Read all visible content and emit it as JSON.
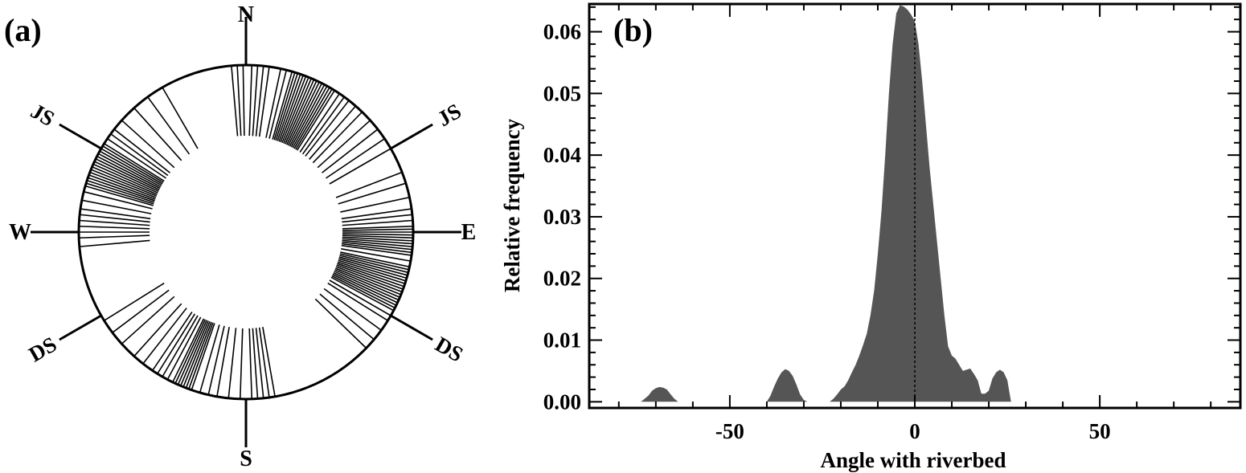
{
  "panels": {
    "a_label": "(a)",
    "b_label": "(b)"
  },
  "rose": {
    "directions": {
      "n": "N",
      "e": "E",
      "s": "S",
      "w": "W"
    },
    "markers": [
      {
        "text": "JS",
        "azimuth_deg": 60
      },
      {
        "text": "JS",
        "azimuth_deg": 300
      },
      {
        "text": "DS",
        "azimuth_deg": 120
      },
      {
        "text": "DS",
        "azimuth_deg": 240
      }
    ],
    "line_azimuths_deg": [
      355,
      357,
      359,
      2,
      4,
      6,
      8,
      12,
      14,
      16,
      17,
      18,
      19,
      20,
      21,
      22,
      23,
      24,
      25,
      26,
      27,
      28,
      29,
      30,
      31,
      32,
      34,
      36,
      38,
      41,
      44,
      48,
      52,
      56,
      60,
      69,
      73,
      78,
      82,
      84,
      86,
      88,
      89,
      90,
      91,
      92,
      93,
      94,
      95,
      96,
      97,
      98,
      100,
      102,
      103,
      104,
      105,
      106,
      107,
      108,
      109,
      110,
      111,
      112,
      113,
      114,
      115,
      116,
      117,
      118,
      120,
      122,
      126,
      130,
      134,
      170,
      172,
      174,
      176,
      178,
      182,
      186,
      190,
      193,
      196,
      199,
      200,
      201,
      202,
      203,
      204,
      205,
      206,
      208,
      210,
      212,
      214,
      218,
      222,
      228,
      233,
      238,
      265,
      268,
      270,
      272,
      274,
      276,
      278,
      281,
      284,
      286,
      287,
      288,
      289,
      290,
      291,
      292,
      293,
      294,
      295,
      296,
      297,
      298,
      299,
      300,
      301,
      302,
      304,
      306,
      308,
      312,
      318,
      324,
      330
    ]
  },
  "chart_data": {
    "type": "area",
    "xlabel": "Angle with riverbed",
    "ylabel": "Relative frequency",
    "xlim": [
      -88,
      88
    ],
    "ylim": [
      -0.001,
      0.0645
    ],
    "xticks": [
      -50,
      0,
      50
    ],
    "yticks": [
      0.0,
      0.01,
      0.02,
      0.03,
      0.04,
      0.05,
      0.06
    ],
    "ytick_labels": [
      "0.00",
      "0.01",
      "0.02",
      "0.03",
      "0.04",
      "0.05",
      "0.06"
    ],
    "reference_line_x": 0,
    "grid": false,
    "fill_color": "#555555",
    "series": [
      {
        "x": [
          -74,
          -72,
          -71,
          -70,
          -69,
          -68,
          -67,
          -66,
          -65,
          -64,
          -40,
          -39,
          -38,
          -37,
          -36,
          -35,
          -34,
          -33,
          -32,
          -31,
          -30,
          -29,
          -28,
          -27,
          -26,
          -25,
          -24,
          -23,
          -22,
          -21,
          -20,
          -19,
          -18,
          -17,
          -16,
          -15,
          -14,
          -13,
          -12,
          -11,
          -10,
          -9,
          -8,
          -7,
          -6,
          -5,
          -4,
          -3,
          -2,
          -1,
          0,
          1,
          2,
          3,
          4,
          5,
          6,
          7,
          8,
          9,
          10,
          11,
          12,
          13,
          14,
          15,
          16,
          17,
          18,
          19,
          20,
          21,
          22,
          23,
          24,
          25,
          26
        ],
        "y": [
          0,
          0.001,
          0.0018,
          0.0022,
          0.0024,
          0.0023,
          0.002,
          0.0012,
          0.0005,
          0,
          0,
          0.001,
          0.0025,
          0.0038,
          0.0048,
          0.0053,
          0.005,
          0.0042,
          0.0028,
          0.0012,
          0.0003,
          0,
          0,
          0,
          0,
          0,
          0,
          0,
          0.0005,
          0.0012,
          0.002,
          0.0025,
          0.0035,
          0.0048,
          0.006,
          0.0075,
          0.0092,
          0.011,
          0.014,
          0.018,
          0.024,
          0.031,
          0.04,
          0.05,
          0.058,
          0.063,
          0.0643,
          0.0641,
          0.0636,
          0.0628,
          0.0617,
          0.058,
          0.052,
          0.045,
          0.038,
          0.032,
          0.026,
          0.02,
          0.014,
          0.009,
          0.0075,
          0.007,
          0.006,
          0.005,
          0.0052,
          0.0054,
          0.0045,
          0.0035,
          0.0013,
          0.0013,
          0.0018,
          0.0038,
          0.0048,
          0.0052,
          0.0048,
          0.0035,
          0
        ]
      }
    ]
  }
}
